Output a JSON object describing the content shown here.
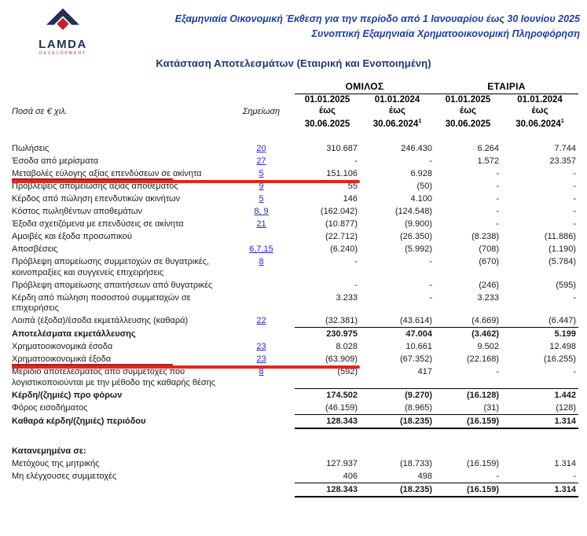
{
  "colors": {
    "title_blue": "#20409a",
    "heading_navy": "#1f3864",
    "link_blue": "#2929cc",
    "annotation_red": "#e3271e",
    "annotation_dark_red": "#a12424",
    "logo_navy": "#253056",
    "logo_red": "#c3202f"
  },
  "header": {
    "logo": {
      "brand": "LAMDA",
      "sub": "DEVELOPMENT"
    },
    "title_line1": "Εξαμηνιαία Οικονομική Έκθεση για την περίοδο από 1 Ιανουαρίου έως 30 Ιουνίου 2025",
    "title_line2": "Συνοπτική Εξαμηνιαία Χρηματοοικονομική Πληροφόρηση"
  },
  "statement": {
    "title": "Κατάσταση Αποτελεσμάτων (Εταιρική και Ενοποιημένη)",
    "units_label": "Ποσά σε € χιλ.",
    "note_label": "Σημείωση",
    "groups": [
      {
        "label": "ΟΜΙΛΟΣ"
      },
      {
        "label": "ΕΤΑΙΡΙΑ"
      }
    ],
    "periods": [
      {
        "from": "01.01.2025",
        "conj": "έως",
        "to": "30.06.2025",
        "sup": ""
      },
      {
        "from": "01.01.2024",
        "conj": "έως",
        "to": "30.06.2024",
        "sup": "1"
      },
      {
        "from": "01.01.2025",
        "conj": "έως",
        "to": "30.06.2025",
        "sup": ""
      },
      {
        "from": "01.01.2024",
        "conj": "έως",
        "to": "30.06.2024",
        "sup": "1"
      }
    ],
    "rows": [
      {
        "label_lines": [
          "Πωλήσεις"
        ],
        "note": "20",
        "values": [
          "310.687",
          "246.430",
          "6.264",
          "7.744"
        ]
      },
      {
        "label_lines": [
          "Έσοδα από μερίσματα"
        ],
        "note": "27",
        "values": [
          "-",
          "-",
          "1.572",
          "23.357"
        ]
      },
      {
        "label_lines": [
          "Μεταβολές εύλογης αξίας επενδύσεων σε ακίνητα"
        ],
        "note": "5",
        "values": [
          "151.106",
          "6.928",
          "-",
          "-"
        ],
        "red_underline": true
      },
      {
        "label_lines": [
          "Προβλέψεις απομείωσης αξίας αποθέματος"
        ],
        "note": "9",
        "values": [
          "55",
          "(50)",
          "-",
          "-"
        ]
      },
      {
        "label_lines": [
          "Κέρδος από πώληση επενδυτικών ακινήτων"
        ],
        "note": "5",
        "values": [
          "146",
          "4.100",
          "-",
          "-"
        ]
      },
      {
        "label_lines": [
          "Κόστος πωληθέντων αποθεμάτων"
        ],
        "note": "8, 9",
        "values": [
          "(162.042)",
          "(124.548)",
          "-",
          "-"
        ]
      },
      {
        "label_lines": [
          "Έξοδα σχετιζόμενα με επενδύσεις σε ακίνητα"
        ],
        "note": "21",
        "values": [
          "(10.877)",
          "(9.900)",
          "-",
          "-"
        ]
      },
      {
        "label_lines": [
          "Αμοιβές και έξοδα προσωπικού"
        ],
        "note": "",
        "values": [
          "(22.712)",
          "(26.350)",
          "(8.238)",
          "(11.886)"
        ]
      },
      {
        "label_lines": [
          "Αποσβέσεις"
        ],
        "note": "6,7,15",
        "values": [
          "(6.240)",
          "(5.992)",
          "(708)",
          "(1.190)"
        ]
      },
      {
        "label_lines": [
          "Πρόβλεψη απομείωσης συμμετοχών σε θυγατρικές,",
          "κοινοπραξίες και συγγενείς επιχειρήσεις"
        ],
        "note": "8",
        "values": [
          "-",
          "-",
          "(670)",
          "(5.784)"
        ]
      },
      {
        "label_lines": [
          "Πρόβλεψη απομείωσης απαιτήσεων από θυγατρικές"
        ],
        "note": "",
        "values": [
          "-",
          "-",
          "(246)",
          "(595)"
        ]
      },
      {
        "label_lines": [
          "Κέρδη από πώληση ποσοστού συμμετοχών σε",
          "επιχειρήσεις"
        ],
        "note": "",
        "values": [
          "3.233",
          "-",
          "3.233",
          "-"
        ]
      },
      {
        "label_lines": [
          "Λοιπά (έξοδα)/έσοδα εκμετάλλευσης (καθαρά)"
        ],
        "note": "22",
        "values": [
          "(32.381)",
          "(43.614)",
          "(4.669)",
          "(6.447)"
        ]
      },
      {
        "label_lines": [
          "Αποτελέσματα εκμετάλλευσης"
        ],
        "note": "",
        "values": [
          "230.975",
          "47.004",
          "(3.462)",
          "5.199"
        ],
        "bold": true,
        "rule_top": true
      },
      {
        "label_lines": [
          "Χρηματοοικονομικά έσοδα"
        ],
        "note": "23",
        "values": [
          "8.028",
          "10.661",
          "9.502",
          "12.498"
        ]
      },
      {
        "label_lines": [
          "Χρηματοοικονομικά έξοδα"
        ],
        "note": "23",
        "values": [
          "(63.909)",
          "(67.352)",
          "(22.168)",
          "(16.255)"
        ],
        "red_underline": true
      },
      {
        "label_lines": [
          "Μερίδιο αποτελέσματος από συμμετοχές που",
          "λογιστικοποιούνται με την μέθοδο της καθαρής θέσης"
        ],
        "note": "8",
        "values": [
          "(592)",
          "417",
          "-",
          "-"
        ]
      },
      {
        "label_lines": [
          "Κέρδη/(ζημιές) προ φόρων"
        ],
        "note": "",
        "values": [
          "174.502",
          "(9.270)",
          "(16.128)",
          "1.442"
        ],
        "bold": true,
        "rule_top": true
      },
      {
        "label_lines": [
          "Φόρος εισοδήματος"
        ],
        "note": "",
        "values": [
          "(46.159)",
          "(8.965)",
          "(31)",
          "(128)"
        ]
      },
      {
        "label_lines": [
          "Καθαρά κέρδη/(ζημιές) περιόδου"
        ],
        "note": "",
        "values": [
          "128.343",
          "(18.235)",
          "(16.159)",
          "1.314"
        ],
        "bold": true,
        "rule_top": true,
        "rule_bottom": true
      },
      {
        "spacer": true
      },
      {
        "label_lines": [
          "Κατανεμημένα σε:"
        ],
        "note": "",
        "values": [
          "",
          "",
          "",
          ""
        ],
        "bold": true
      },
      {
        "label_lines": [
          "Μετόχους της μητρικής"
        ],
        "note": "",
        "values": [
          "127.937",
          "(18.733)",
          "(16.159)",
          "1.314"
        ]
      },
      {
        "label_lines": [
          "Μη ελέγχουσες συμμετοχές"
        ],
        "note": "",
        "values": [
          "406",
          "498",
          "-",
          "-"
        ]
      },
      {
        "label_lines": [
          ""
        ],
        "note": "",
        "values": [
          "128.343",
          "(18.235)",
          "(16.159)",
          "1.314"
        ],
        "bold": true,
        "rule_top": true,
        "rule_bottom": true
      }
    ]
  }
}
